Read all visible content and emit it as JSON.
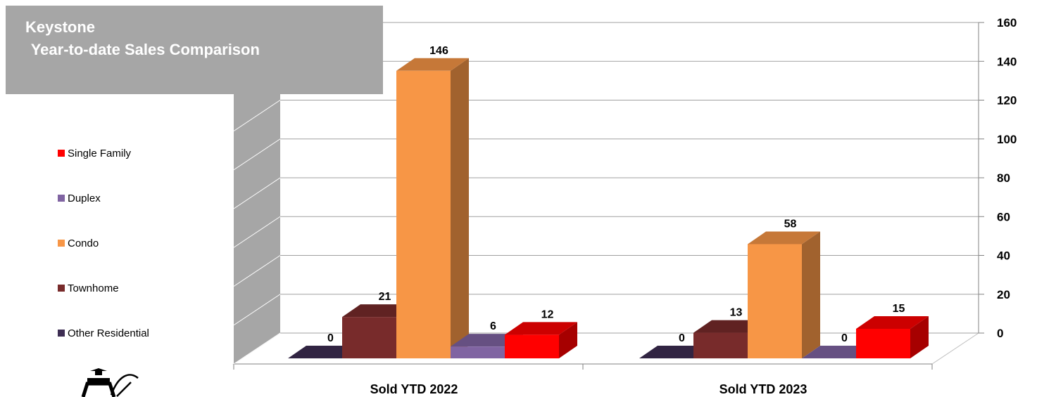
{
  "title": {
    "line1": "Keystone",
    "line2": " Year-to-date Sales Comparison"
  },
  "colors": {
    "title_box": "#a6a6a6",
    "wall": "#a6a6a6",
    "gridline": "#a0a0a0"
  },
  "chart_data": {
    "type": "bar",
    "style": "3d-clustered",
    "categories": [
      "Sold YTD 2022",
      "Sold YTD 2023"
    ],
    "series": [
      {
        "name": "Other Residential",
        "values": [
          0,
          0
        ],
        "color": "#3d2d52"
      },
      {
        "name": "Townhome",
        "values": [
          21,
          13
        ],
        "color": "#782b2b"
      },
      {
        "name": "Condo",
        "values": [
          146,
          58
        ],
        "color": "#f79646"
      },
      {
        "name": "Duplex",
        "values": [
          6,
          0
        ],
        "color": "#8064a2"
      },
      {
        "name": "Single Family",
        "values": [
          12,
          15
        ],
        "color": "#ff0000"
      }
    ],
    "legend_order": [
      "Single Family",
      "Duplex",
      "Condo",
      "Townhome",
      "Other Residential"
    ],
    "y_axis": {
      "min": 0,
      "max": 160,
      "step": 20,
      "ticks": [
        "0",
        "20",
        "40",
        "60",
        "80",
        "100",
        "120",
        "140",
        "160"
      ],
      "position": "right"
    },
    "data_labels": true,
    "legend_position": "left",
    "grid": true
  }
}
